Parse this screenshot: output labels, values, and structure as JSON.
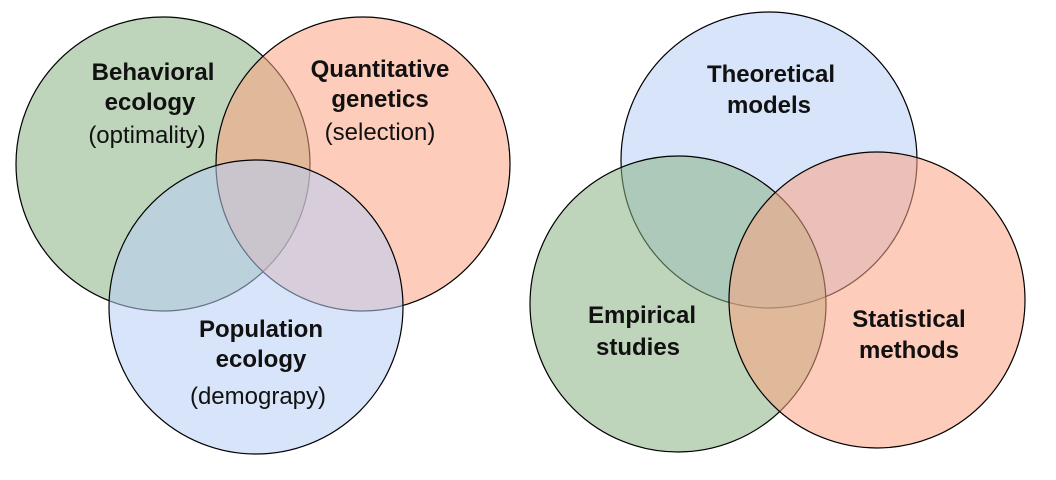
{
  "colors": {
    "green": "#88b283",
    "orange": "#fba282",
    "blue": "#b8cef5",
    "outline": "#000000"
  },
  "left_venn": {
    "circles": [
      {
        "key": "behavioral",
        "title_line1": "Behavioral",
        "title_line2": "ecology",
        "subtitle": "(optimality)",
        "color": "#88b283"
      },
      {
        "key": "quantitative",
        "title_line1": "Quantitative",
        "title_line2": "genetics",
        "subtitle": "(selection)",
        "color": "#fba282"
      },
      {
        "key": "population",
        "title_line1": "Population",
        "title_line2": "ecology",
        "subtitle": "(demograpy)",
        "color": "#b8cef5"
      }
    ]
  },
  "right_venn": {
    "circles": [
      {
        "key": "theoretical",
        "title_line1": "Theoretical",
        "title_line2": "models",
        "color": "#b8cef5"
      },
      {
        "key": "empirical",
        "title_line1": "Empirical",
        "title_line2": "studies",
        "color": "#88b283"
      },
      {
        "key": "statistical",
        "title_line1": "Statistical",
        "title_line2": "methods",
        "color": "#fba282"
      }
    ]
  }
}
